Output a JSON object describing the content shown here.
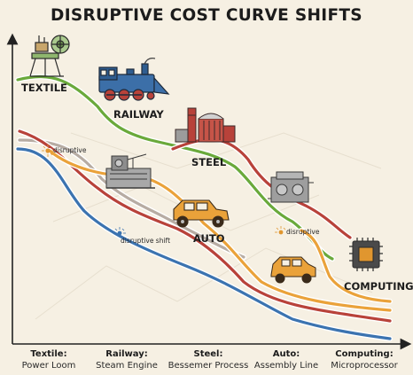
{
  "title": "DISRUPTIVE COST CURVE SHIFTS",
  "labels": {
    "textile": "TEXTILE",
    "railway": "RAILWAY",
    "steel": "STEEL",
    "auto": "AUTO",
    "computing": "COMPUTING"
  },
  "annotations": {
    "disruptive_1": "disruptive",
    "disruptive_shift": "disruptive shift",
    "disruptive_2": "disruptive"
  },
  "eras": [
    {
      "name": "Textile:",
      "tech": "Power Loom"
    },
    {
      "name": "Railway:",
      "tech": "Steam Engine"
    },
    {
      "name": "Steel:",
      "tech": "Bessemer Process"
    },
    {
      "name": "Auto:",
      "tech": "Assembly Line"
    },
    {
      "name": "Computing:",
      "tech": "Microprocessor"
    }
  ],
  "curve_colors": {
    "green": "#6aa93b",
    "red": "#b8423a",
    "orange": "#eaa23a",
    "gray": "#b7aca3",
    "blue": "#3b73b0"
  },
  "icons": [
    "spinning-machine-icon",
    "steam-locomotive-icon",
    "steel-mill-icon",
    "factory-machine-icon",
    "vintage-car-icon",
    "engine-icon",
    "microchip-icon"
  ]
}
